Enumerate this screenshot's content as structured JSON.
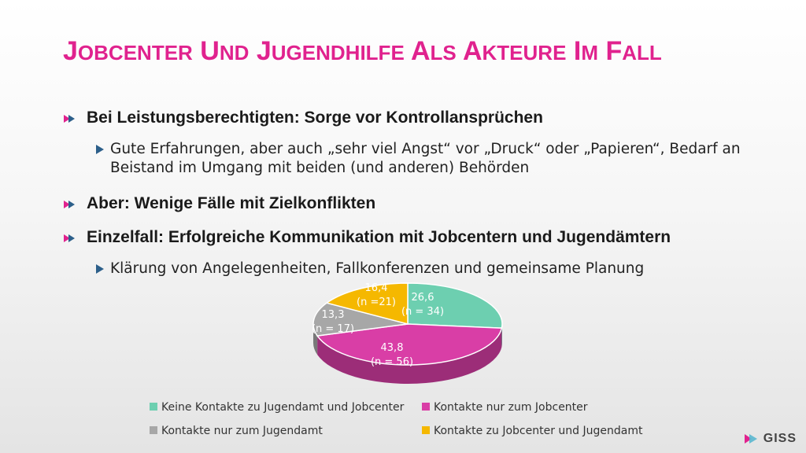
{
  "slide": {
    "title": "Jobcenter und Jugendhilfe als Akteure im Fall",
    "bullets": [
      {
        "text": "Bei Leistungsberechtigten: Sorge vor Kontrollansprüchen",
        "sub": "Gute Erfahrungen, aber auch „sehr viel Angst“ vor „Druck“ oder „Papieren“, Bedarf an Beistand im Umgang mit beiden (und anderen) Behörden"
      },
      {
        "text": "Aber: Wenige Fälle mit Zielkonflikten"
      },
      {
        "text": "Einzelfall: Erfolgreiche Kommunikation mit Jobcentern und Jugendämtern",
        "sub": "Klärung von Angelegenheiten, Fallkonferenzen und gemeinsame Planung"
      }
    ]
  },
  "chart_data": {
    "type": "pie",
    "slices": [
      {
        "label": "Keine Kontakte zu Jugendamt und Jobcenter",
        "value": 26.6,
        "n_label": "(n = 34)",
        "color": "#6dcfb0"
      },
      {
        "label": "Kontakte nur zum Jobcenter",
        "value": 43.8,
        "n_label": "(n = 56)",
        "color": "#d93ea6"
      },
      {
        "label": "Kontakte nur zum Jugendamt",
        "value": 13.3,
        "n_label": "(n = 17)",
        "color": "#a7a7a7"
      },
      {
        "label": "Kontakte zu Jobcenter und Jugendamt",
        "value": 16.4,
        "n_label": "(n =21)",
        "color": "#f5b800"
      }
    ],
    "value_labels": [
      "26,6",
      "43,8",
      "13,3",
      "16,4"
    ],
    "legend_position": "bottom"
  },
  "logo": {
    "text": "GISS"
  }
}
